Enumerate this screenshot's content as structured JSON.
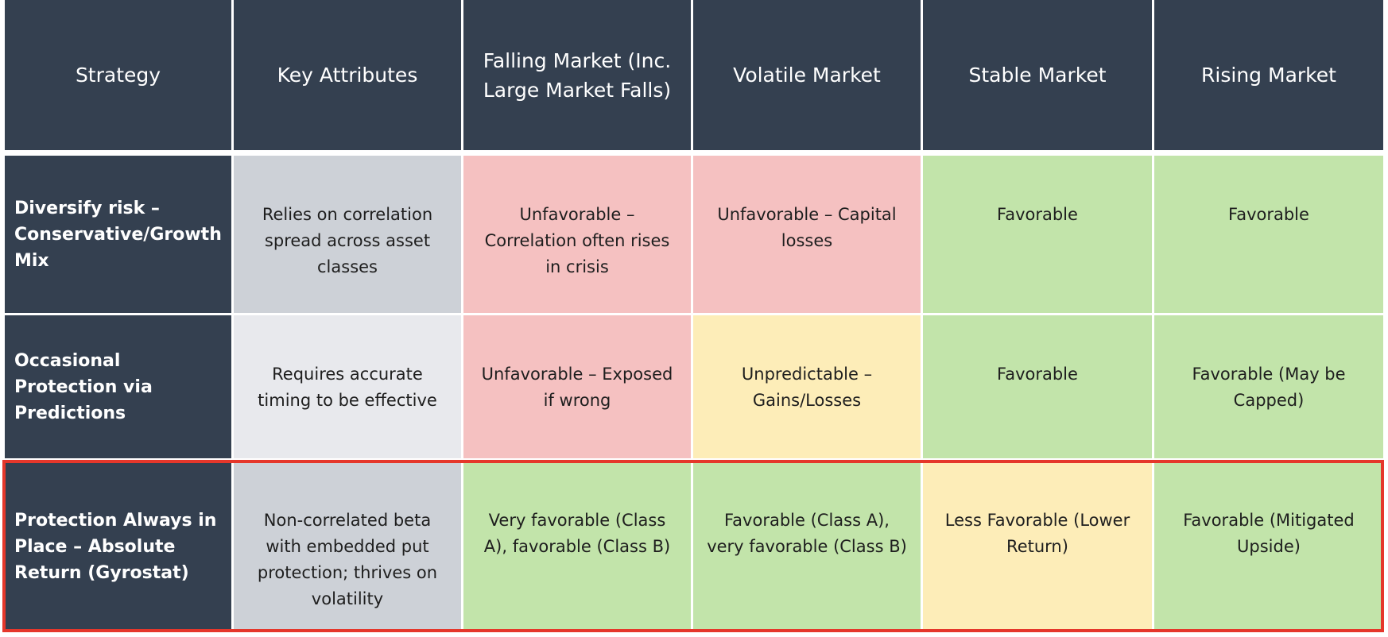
{
  "table": {
    "header": [
      "Strategy",
      "Key Attributes",
      "Falling Market (Inc. Large Market Falls)",
      "Volatile Market",
      "Stable Market",
      "Rising Market"
    ],
    "rows": [
      [
        "Diversify risk – Conservative/Growth Mix",
        "Relies on correlation spread across asset classes",
        "Unfavorable – Correlation often rises in crisis",
        "Unfavorable – Capital losses",
        "Favorable",
        "Favorable"
      ],
      [
        "Occasional Protection via Predictions",
        "Requires accurate timing to be effective",
        "Unfavorable – Exposed if wrong",
        "Unpredictable – Gains/Losses",
        "Favorable",
        "Favorable (May be Capped)"
      ],
      [
        "Protection Always in Place – Absolute Return (Gyrostat)",
        "Non-correlated beta with embedded put protection; thrives on volatility",
        "Very favorable (Class A), favorable (Class B)",
        "Favorable (Class A), very favorable (Class B)",
        "Less Favorable (Lower Return)",
        "Favorable (Mitigated Upside)"
      ]
    ]
  }
}
